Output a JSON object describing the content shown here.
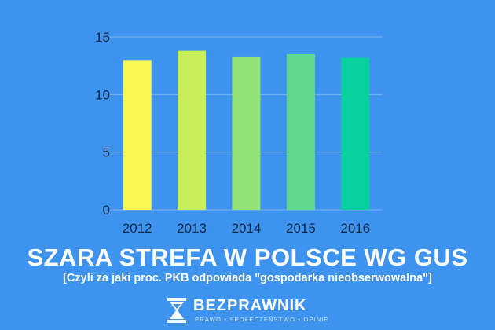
{
  "chart_data": {
    "type": "bar",
    "title": "SZARA STREFA W POLSCE WG GUS",
    "subtitle": "[Czyli za jaki proc. PKB odpowiada \"gospodarka nieobserwowalna\"]",
    "categories": [
      "2012",
      "2013",
      "2014",
      "2015",
      "2016"
    ],
    "values": [
      13.0,
      13.8,
      13.3,
      13.5,
      13.2
    ],
    "bar_colors": [
      "#f8f751",
      "#c8ef5a",
      "#93e275",
      "#5fd98f",
      "#08cf9e"
    ],
    "ylim": [
      0,
      15
    ],
    "yticks": [
      0,
      5,
      10,
      15
    ],
    "grid": true,
    "xlabel": "",
    "ylabel": ""
  },
  "logo": {
    "name": "BEZPRAWNIK",
    "tagline": "PRAWO • SPOŁECZEŃSTWO • OPINIE"
  },
  "colors": {
    "background": "#3e93ee",
    "text_dark": "#0b2a4a",
    "grid": "#7db6f3"
  }
}
